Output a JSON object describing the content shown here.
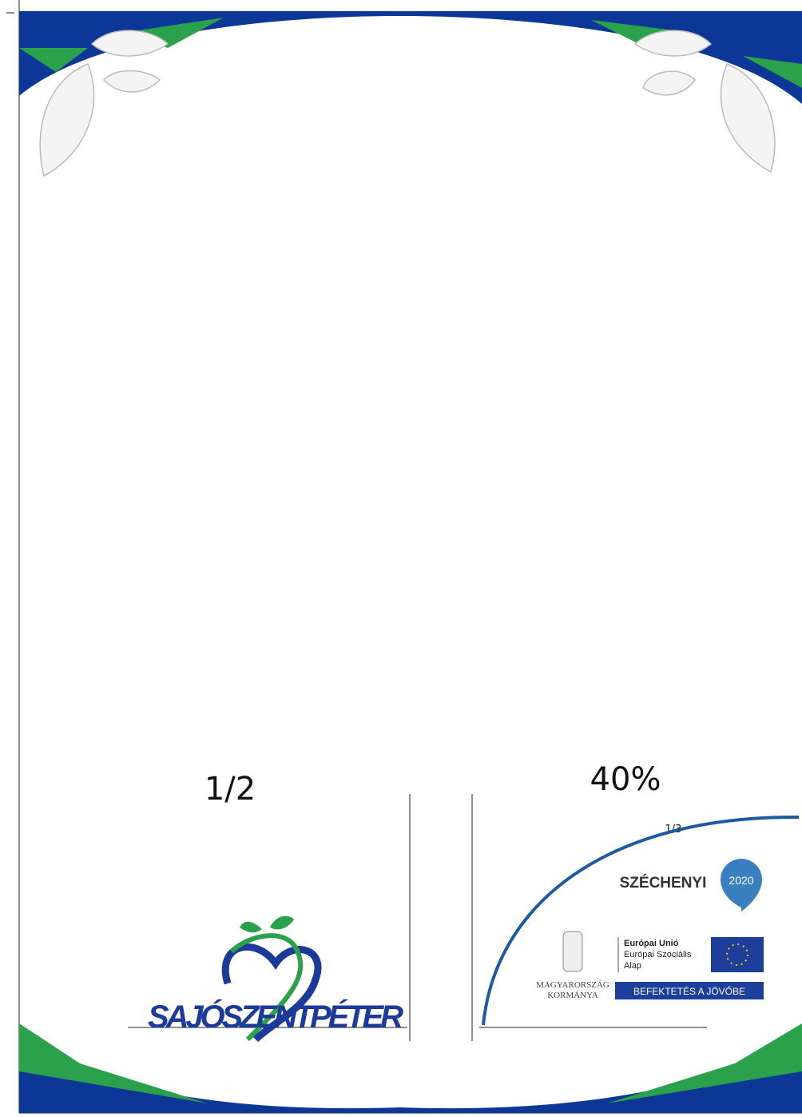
{
  "annotations": {
    "left_fraction": "1/2",
    "percent": "40%",
    "right_fraction": "1/3"
  },
  "town_logo": {
    "name": "SAJÓSZENTPÉTER"
  },
  "funding_logo": {
    "programme": "SZÉCHENYI",
    "year": "2020",
    "government": [
      "MAGYARORSZÁG",
      "KORMÁNYA"
    ],
    "eu": [
      "Európai Unió",
      "Európai Szociális",
      "Alap"
    ],
    "slogan": "BEFEKTETÉS A JÖVŐBE"
  }
}
